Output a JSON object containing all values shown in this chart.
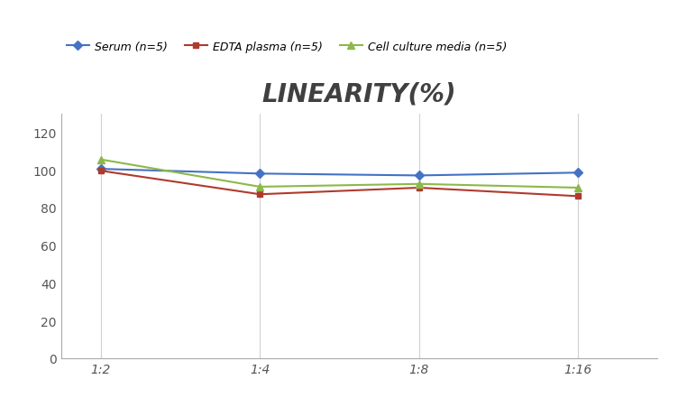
{
  "title": "LINEARITY(%)",
  "x_labels": [
    "1:2",
    "1:4",
    "1:8",
    "1:16"
  ],
  "x_positions": [
    0,
    1,
    2,
    3
  ],
  "series": [
    {
      "label": "Serum (n=5)",
      "values": [
        100.5,
        98.0,
        97.0,
        98.5
      ],
      "color": "#4472C4",
      "marker": "D",
      "markersize": 5,
      "linewidth": 1.5
    },
    {
      "label": "EDTA plasma (n=5)",
      "values": [
        99.5,
        87.0,
        90.5,
        86.0
      ],
      "color": "#B03A2E",
      "marker": "s",
      "markersize": 5,
      "linewidth": 1.5
    },
    {
      "label": "Cell culture media (n=5)",
      "values": [
        105.5,
        91.0,
        92.5,
        90.5
      ],
      "color": "#8DB84A",
      "marker": "^",
      "markersize": 6,
      "linewidth": 1.5
    }
  ],
  "ylim": [
    0,
    130
  ],
  "yticks": [
    0,
    20,
    40,
    60,
    80,
    100,
    120
  ],
  "xlim": [
    -0.25,
    3.5
  ],
  "background_color": "#ffffff",
  "grid_color": "#d0d0d0",
  "title_fontsize": 20,
  "title_fontstyle": "italic",
  "title_fontweight": "bold",
  "title_color": "#404040",
  "legend_fontsize": 9,
  "tick_fontsize": 10,
  "tick_color": "#555555"
}
